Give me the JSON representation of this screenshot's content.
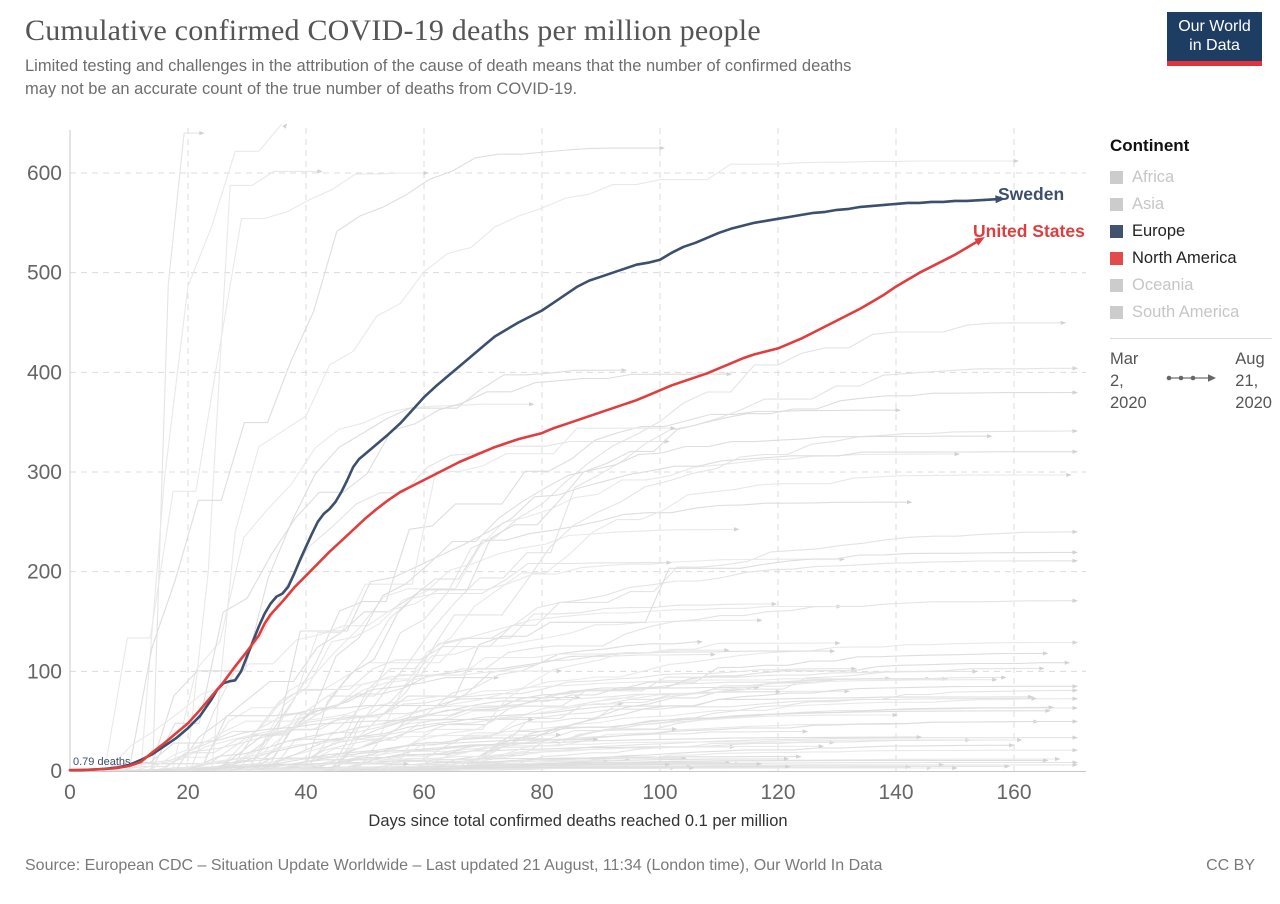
{
  "header": {
    "title": "Cumulative confirmed COVID-19 deaths per million people",
    "subtitle": "Limited testing and challenges in the attribution of the cause of death means that the number of confirmed deaths\nmay not be an accurate count of the true number of deaths from COVID-19.",
    "logo": {
      "line1": "Our World",
      "line2": "in Data",
      "bg": "#1d3d63",
      "bar": "#e0333c"
    }
  },
  "legend": {
    "heading": "Continent",
    "items": [
      {
        "label": "Africa",
        "color": "#cccccc",
        "active": false
      },
      {
        "label": "Asia",
        "color": "#cccccc",
        "active": false
      },
      {
        "label": "Europe",
        "color": "#42536f",
        "active": true
      },
      {
        "label": "North America",
        "color": "#e34b4b",
        "active": true
      },
      {
        "label": "Oceania",
        "color": "#cccccc",
        "active": false
      },
      {
        "label": "South America",
        "color": "#cccccc",
        "active": false
      }
    ]
  },
  "timeline": {
    "start": "Mar\n2,\n2020",
    "end": "Aug\n21,\n2020"
  },
  "chart_data": {
    "type": "line",
    "title": "Cumulative confirmed COVID-19 deaths per million people",
    "xlabel": "Days since total confirmed deaths reached 0.1 per million",
    "ylabel": "",
    "x_ticks": [
      0,
      20,
      40,
      60,
      80,
      100,
      120,
      140,
      160
    ],
    "y_ticks": [
      0,
      100,
      200,
      300,
      400,
      500,
      600
    ],
    "xlim": [
      0,
      172
    ],
    "ylim": [
      0,
      645
    ],
    "grid": true,
    "annotation": {
      "text": "0.79 deaths",
      "x": 0,
      "y": 0.79
    },
    "series": [
      {
        "name": "Sweden",
        "color": "#3c4f6d",
        "label_x": 998,
        "label_y": 200,
        "points": [
          [
            0,
            0.8
          ],
          [
            2,
            1
          ],
          [
            4,
            1.5
          ],
          [
            6,
            2.2
          ],
          [
            8,
            3.5
          ],
          [
            10,
            6
          ],
          [
            12,
            11
          ],
          [
            14,
            17
          ],
          [
            16,
            25
          ],
          [
            18,
            33
          ],
          [
            20,
            43
          ],
          [
            22,
            55
          ],
          [
            24,
            72
          ],
          [
            25,
            82
          ],
          [
            26,
            88
          ],
          [
            27,
            90
          ],
          [
            28,
            91
          ],
          [
            29,
            100
          ],
          [
            30,
            115
          ],
          [
            31,
            130
          ],
          [
            32,
            145
          ],
          [
            33,
            158
          ],
          [
            34,
            168
          ],
          [
            35,
            175
          ],
          [
            36,
            178
          ],
          [
            37,
            185
          ],
          [
            38,
            198
          ],
          [
            39,
            212
          ],
          [
            40,
            225
          ],
          [
            41,
            238
          ],
          [
            42,
            250
          ],
          [
            43,
            258
          ],
          [
            44,
            263
          ],
          [
            45,
            270
          ],
          [
            46,
            280
          ],
          [
            47,
            292
          ],
          [
            48,
            305
          ],
          [
            49,
            313
          ],
          [
            50,
            318
          ],
          [
            52,
            328
          ],
          [
            54,
            338
          ],
          [
            56,
            349
          ],
          [
            58,
            362
          ],
          [
            60,
            375
          ],
          [
            62,
            386
          ],
          [
            64,
            396
          ],
          [
            66,
            406
          ],
          [
            68,
            416
          ],
          [
            70,
            426
          ],
          [
            72,
            436
          ],
          [
            74,
            443
          ],
          [
            76,
            450
          ],
          [
            78,
            456
          ],
          [
            80,
            462
          ],
          [
            82,
            470
          ],
          [
            84,
            478
          ],
          [
            86,
            486
          ],
          [
            88,
            492
          ],
          [
            90,
            496
          ],
          [
            92,
            500
          ],
          [
            94,
            504
          ],
          [
            96,
            508
          ],
          [
            98,
            510
          ],
          [
            100,
            513
          ],
          [
            102,
            520
          ],
          [
            104,
            526
          ],
          [
            106,
            530
          ],
          [
            108,
            535
          ],
          [
            110,
            540
          ],
          [
            112,
            544
          ],
          [
            114,
            547
          ],
          [
            116,
            550
          ],
          [
            118,
            552
          ],
          [
            120,
            554
          ],
          [
            122,
            556
          ],
          [
            124,
            558
          ],
          [
            126,
            560
          ],
          [
            128,
            561
          ],
          [
            130,
            563
          ],
          [
            132,
            564
          ],
          [
            134,
            566
          ],
          [
            136,
            567
          ],
          [
            138,
            568
          ],
          [
            140,
            569
          ],
          [
            142,
            570
          ],
          [
            144,
            570
          ],
          [
            146,
            571
          ],
          [
            148,
            571
          ],
          [
            150,
            572
          ],
          [
            152,
            572
          ],
          [
            155,
            573
          ]
        ]
      },
      {
        "name": "United States",
        "color": "#e03e3e",
        "label_x": 973,
        "label_y": 237,
        "points": [
          [
            0,
            0.8
          ],
          [
            3,
            1.2
          ],
          [
            6,
            2
          ],
          [
            8,
            3
          ],
          [
            10,
            5
          ],
          [
            12,
            9
          ],
          [
            14,
            19
          ],
          [
            16,
            28
          ],
          [
            18,
            38
          ],
          [
            20,
            48
          ],
          [
            22,
            61
          ],
          [
            24,
            75
          ],
          [
            26,
            89
          ],
          [
            28,
            105
          ],
          [
            30,
            120
          ],
          [
            32,
            136
          ],
          [
            33,
            148
          ],
          [
            34,
            157
          ],
          [
            36,
            170
          ],
          [
            38,
            184
          ],
          [
            40,
            196
          ],
          [
            42,
            208
          ],
          [
            44,
            220
          ],
          [
            46,
            231
          ],
          [
            48,
            242
          ],
          [
            50,
            253
          ],
          [
            52,
            263
          ],
          [
            54,
            272
          ],
          [
            56,
            280
          ],
          [
            58,
            286
          ],
          [
            60,
            292
          ],
          [
            62,
            298
          ],
          [
            64,
            304
          ],
          [
            66,
            310
          ],
          [
            68,
            315
          ],
          [
            70,
            320
          ],
          [
            72,
            325
          ],
          [
            74,
            329
          ],
          [
            76,
            333
          ],
          [
            78,
            336
          ],
          [
            80,
            339
          ],
          [
            82,
            344
          ],
          [
            84,
            348
          ],
          [
            86,
            352
          ],
          [
            88,
            356
          ],
          [
            90,
            360
          ],
          [
            92,
            364
          ],
          [
            94,
            368
          ],
          [
            96,
            372
          ],
          [
            98,
            377
          ],
          [
            100,
            382
          ],
          [
            102,
            387
          ],
          [
            104,
            391
          ],
          [
            106,
            395
          ],
          [
            108,
            399
          ],
          [
            110,
            404
          ],
          [
            112,
            409
          ],
          [
            114,
            414
          ],
          [
            116,
            418
          ],
          [
            118,
            421
          ],
          [
            120,
            424
          ],
          [
            122,
            429
          ],
          [
            124,
            434
          ],
          [
            126,
            440
          ],
          [
            128,
            446
          ],
          [
            130,
            452
          ],
          [
            132,
            458
          ],
          [
            134,
            464
          ],
          [
            136,
            471
          ],
          [
            138,
            478
          ],
          [
            140,
            486
          ],
          [
            142,
            493
          ],
          [
            144,
            500
          ],
          [
            146,
            506
          ],
          [
            148,
            512
          ],
          [
            150,
            518
          ],
          [
            152,
            525
          ]
        ]
      }
    ],
    "background_lines": {
      "seed": 13,
      "mid_count": 20,
      "low_count": 72,
      "palette": [
        "#e9e9e9",
        "#e4e4e4",
        "#dedede"
      ],
      "specials": [
        {
          "start": 6,
          "end": 22,
          "final": 640,
          "k": 3.5
        },
        {
          "start": 12,
          "end": 36,
          "final": 650,
          "k": 2.5
        },
        {
          "start": 16,
          "end": 42,
          "final": 620,
          "k": 2.0
        },
        {
          "start": 2,
          "end": 60,
          "final": 600,
          "k": 2.2
        },
        {
          "start": 10,
          "end": 100,
          "final": 625,
          "k": 2.8
        },
        {
          "start": 8,
          "end": 160,
          "final": 612,
          "k": 3.0
        },
        {
          "start": 20,
          "end": 170,
          "final": 240,
          "k": 1.2
        },
        {
          "start": 30,
          "end": 140,
          "final": 362,
          "k": 2.4
        },
        {
          "start": 25,
          "end": 150,
          "final": 318,
          "k": 2.0
        },
        {
          "start": 40,
          "end": 168,
          "final": 450,
          "k": 1.6
        },
        {
          "start": 35,
          "end": 165,
          "final": 118,
          "k": 1.3
        },
        {
          "start": 15,
          "end": 130,
          "final": 165,
          "k": 2.1
        }
      ]
    }
  },
  "footer": {
    "source": "Source: European CDC – Situation Update Worldwide – Last updated 21 August, 11:34 (London time), Our World In Data",
    "license": "CC BY"
  }
}
